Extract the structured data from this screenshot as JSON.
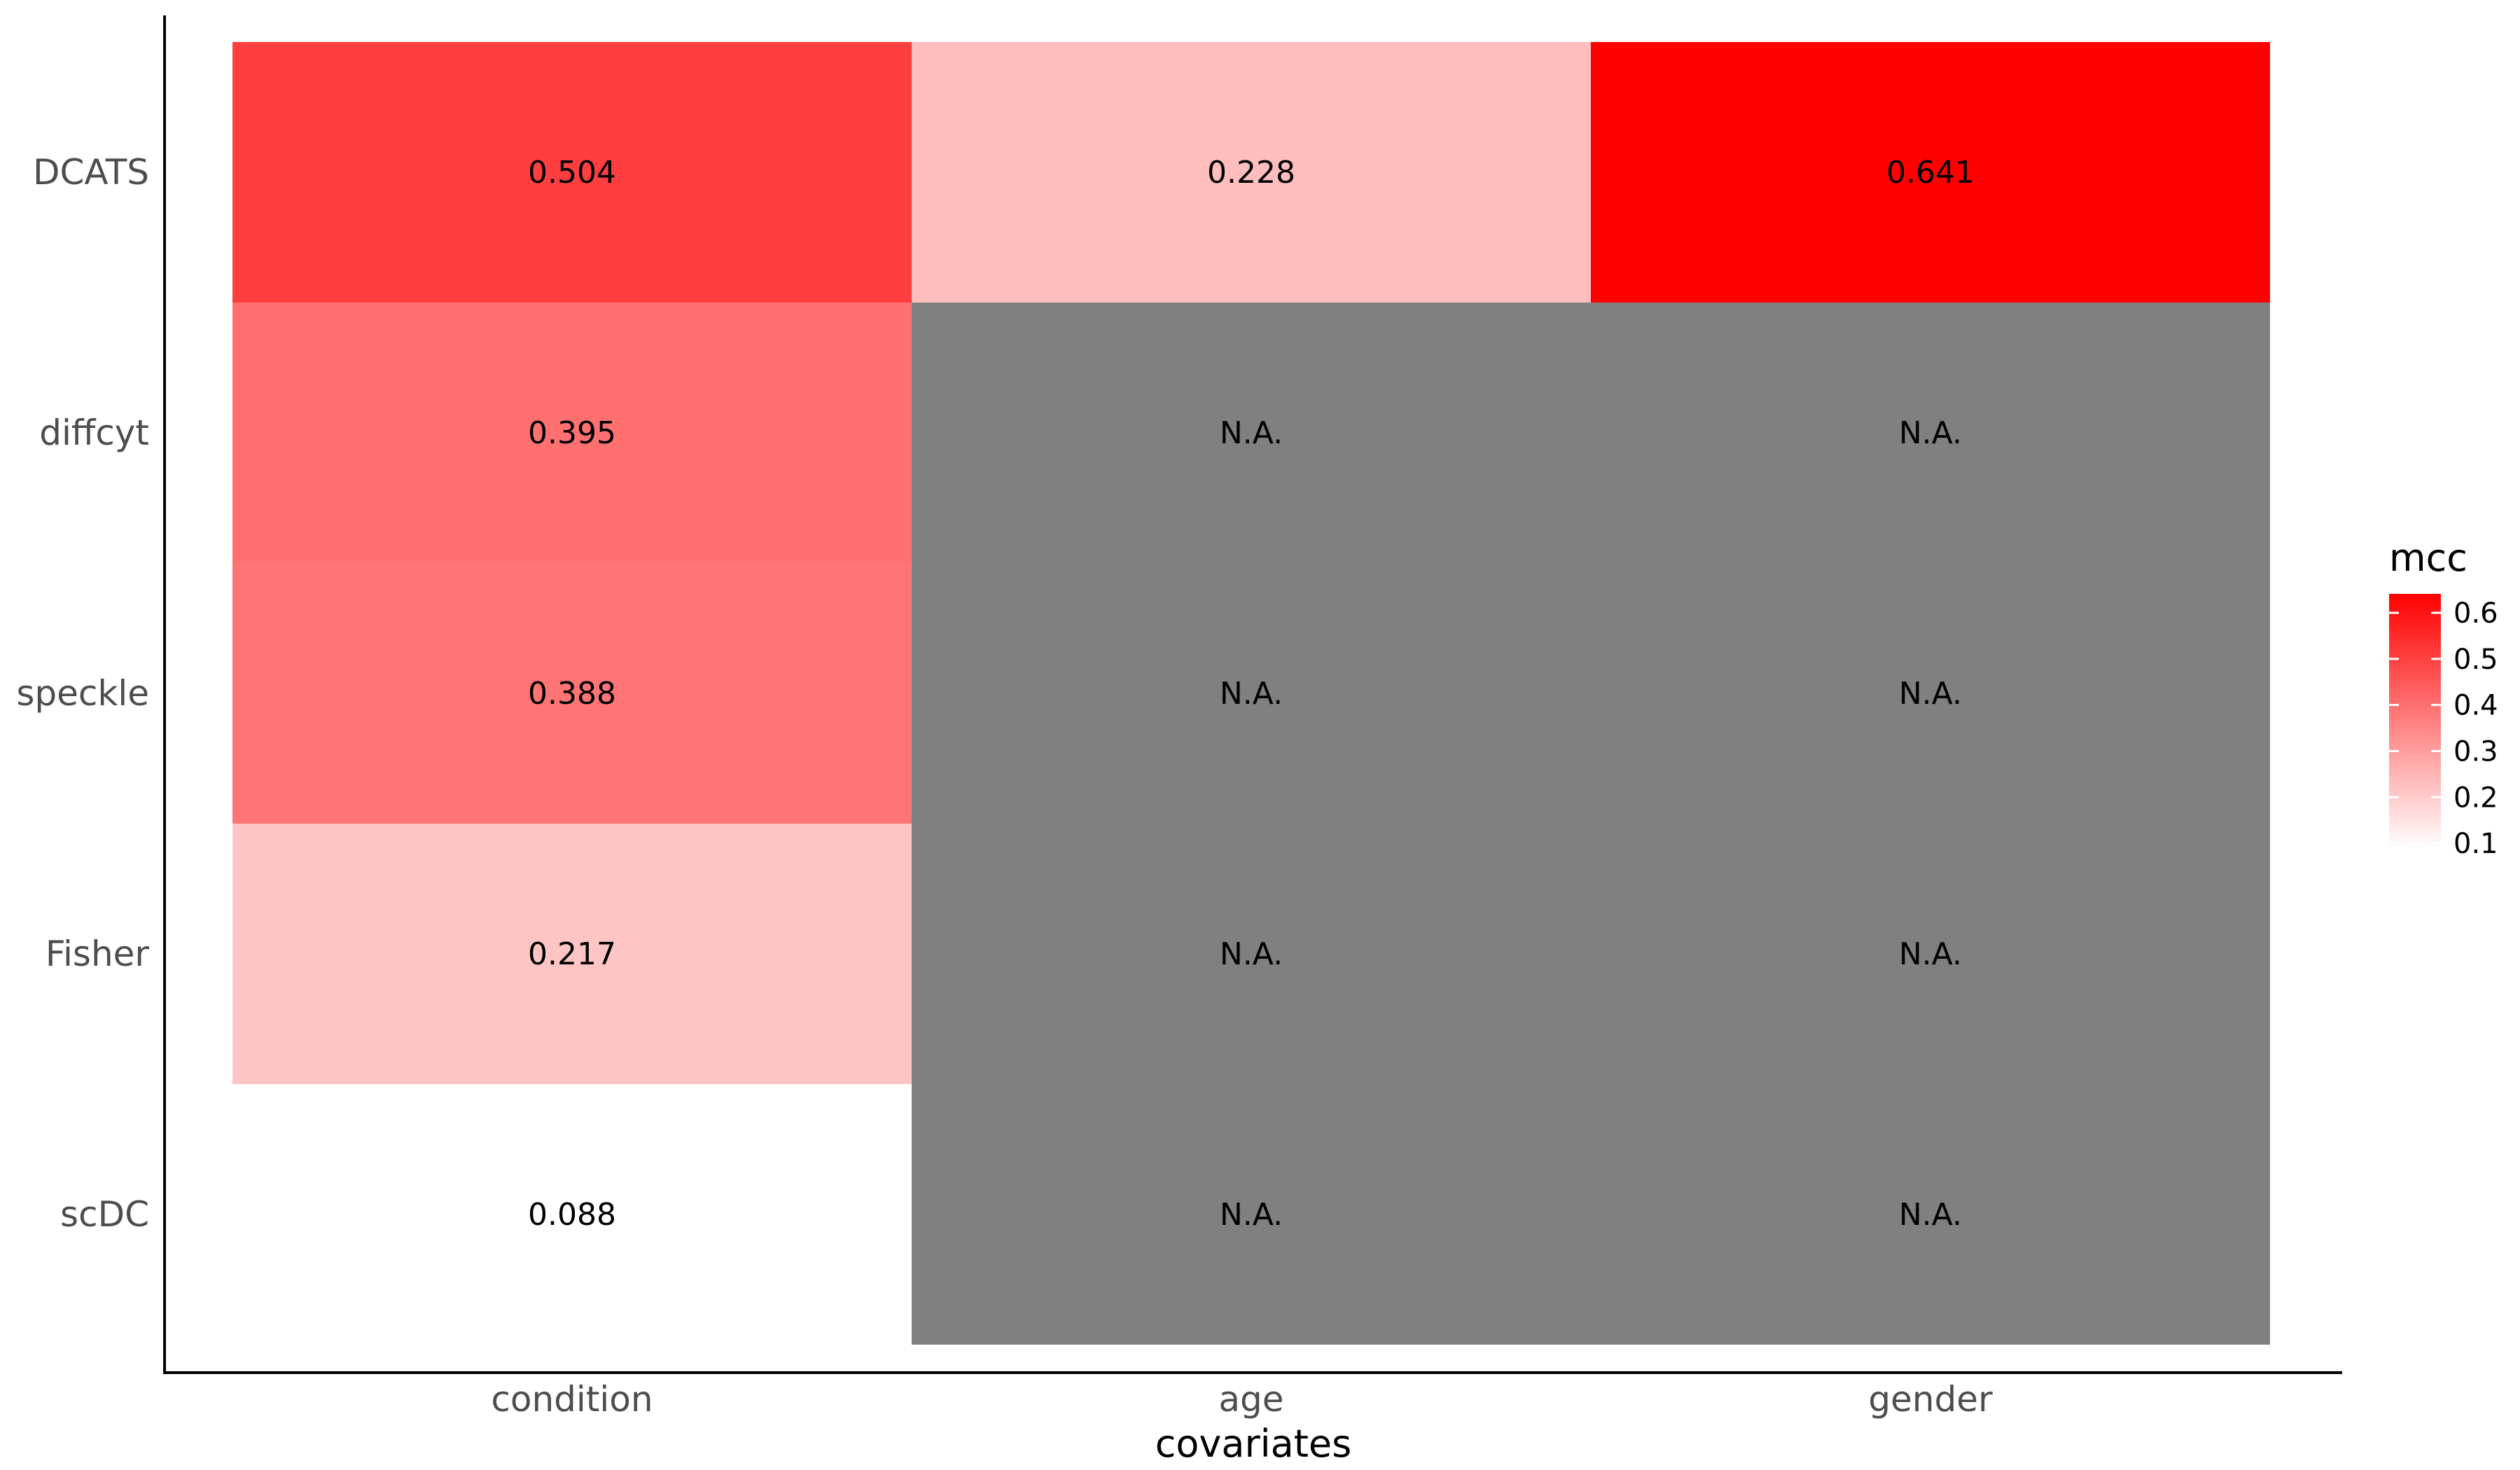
{
  "chart_data": {
    "type": "heatmap",
    "x_categories": [
      "condition",
      "age",
      "gender"
    ],
    "y_categories": [
      "DCATS",
      "diffcyt",
      "speckle",
      "Fisher",
      "scDC"
    ],
    "cells": [
      {
        "x": "condition",
        "y": "DCATS",
        "value": 0.504,
        "label": "0.504"
      },
      {
        "x": "age",
        "y": "DCATS",
        "value": 0.228,
        "label": "0.228"
      },
      {
        "x": "gender",
        "y": "DCATS",
        "value": 0.641,
        "label": "0.641"
      },
      {
        "x": "condition",
        "y": "diffcyt",
        "value": 0.395,
        "label": "0.395"
      },
      {
        "x": "age",
        "y": "diffcyt",
        "value": null,
        "label": "N.A."
      },
      {
        "x": "gender",
        "y": "diffcyt",
        "value": null,
        "label": "N.A."
      },
      {
        "x": "condition",
        "y": "speckle",
        "value": 0.388,
        "label": "0.388"
      },
      {
        "x": "age",
        "y": "speckle",
        "value": null,
        "label": "N.A."
      },
      {
        "x": "gender",
        "y": "speckle",
        "value": null,
        "label": "N.A."
      },
      {
        "x": "condition",
        "y": "Fisher",
        "value": 0.217,
        "label": "0.217"
      },
      {
        "x": "age",
        "y": "Fisher",
        "value": null,
        "label": "N.A."
      },
      {
        "x": "gender",
        "y": "Fisher",
        "value": null,
        "label": "N.A."
      },
      {
        "x": "condition",
        "y": "scDC",
        "value": 0.088,
        "label": "0.088"
      },
      {
        "x": "age",
        "y": "scDC",
        "value": null,
        "label": "N.A."
      },
      {
        "x": "gender",
        "y": "scDC",
        "value": null,
        "label": "N.A."
      }
    ],
    "xlabel": "covariates",
    "ylabel": "",
    "legend": {
      "title": "mcc",
      "placement": "right",
      "ticks": [
        0.1,
        0.2,
        0.3,
        0.4,
        0.5,
        0.6
      ],
      "tick_labels": [
        "0.1",
        "0.2",
        "0.3",
        "0.4",
        "0.5",
        "0.6"
      ],
      "range": [
        0.088,
        0.641
      ]
    },
    "colors": {
      "low": "#ffffff",
      "high": "#ff0000",
      "na": "#808080"
    },
    "grid": false
  }
}
